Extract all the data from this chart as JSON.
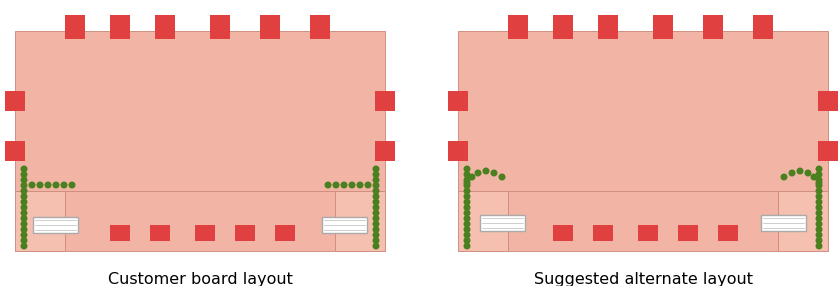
{
  "bg_color": "#ffffff",
  "board_fill": "#f2b5a5",
  "board_fill2": "#f5c0b0",
  "pad_red": "#e04040",
  "green_dot": "#4a8020",
  "white": "#ffffff",
  "connector_border": "#aaaaaa",
  "label1": "Customer board layout",
  "label2": "Suggested alternate layout",
  "label_fontsize": 11.5,
  "board_edge": "#d09080"
}
